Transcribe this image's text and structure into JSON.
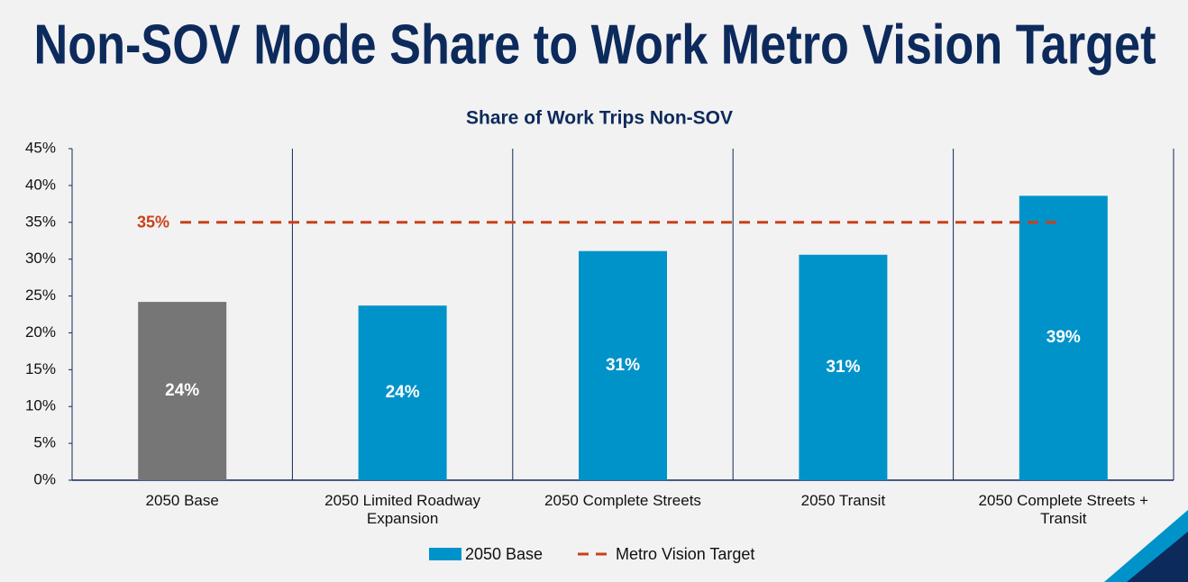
{
  "chart_data": {
    "type": "bar",
    "title": "Non-SOV Mode Share to Work Metro Vision Target",
    "subtitle": "Share of Work Trips Non-SOV",
    "categories": [
      "2050 Base",
      "2050 Limited Roadway Expansion",
      "2050 Complete Streets",
      "2050 Transit",
      "2050 Complete Streets + Transit"
    ],
    "series": [
      {
        "name": "2050 Base",
        "color": "#0093c9",
        "colors": [
          "#767676",
          "#0093c9",
          "#0093c9",
          "#0093c9",
          "#0093c9"
        ],
        "values": [
          24.2,
          23.7,
          31.1,
          30.6,
          38.6
        ],
        "value_labels": [
          "24%",
          "24%",
          "31%",
          "31%",
          "39%"
        ]
      }
    ],
    "target": {
      "name": "Metro Vision Target",
      "value": 35,
      "label": "35%",
      "color": "#c9401a"
    },
    "ylim": [
      0,
      45
    ],
    "yticks": [
      {
        "value": 0,
        "label": "0%"
      },
      {
        "value": 5,
        "label": "5%"
      },
      {
        "value": 10,
        "label": "10%"
      },
      {
        "value": 15,
        "label": "15%"
      },
      {
        "value": 20,
        "label": "20%"
      },
      {
        "value": 25,
        "label": "25%"
      },
      {
        "value": 30,
        "label": "30%"
      },
      {
        "value": 35,
        "label": "35%"
      },
      {
        "value": 40,
        "label": "40%"
      },
      {
        "value": 45,
        "label": "45%"
      }
    ]
  }
}
